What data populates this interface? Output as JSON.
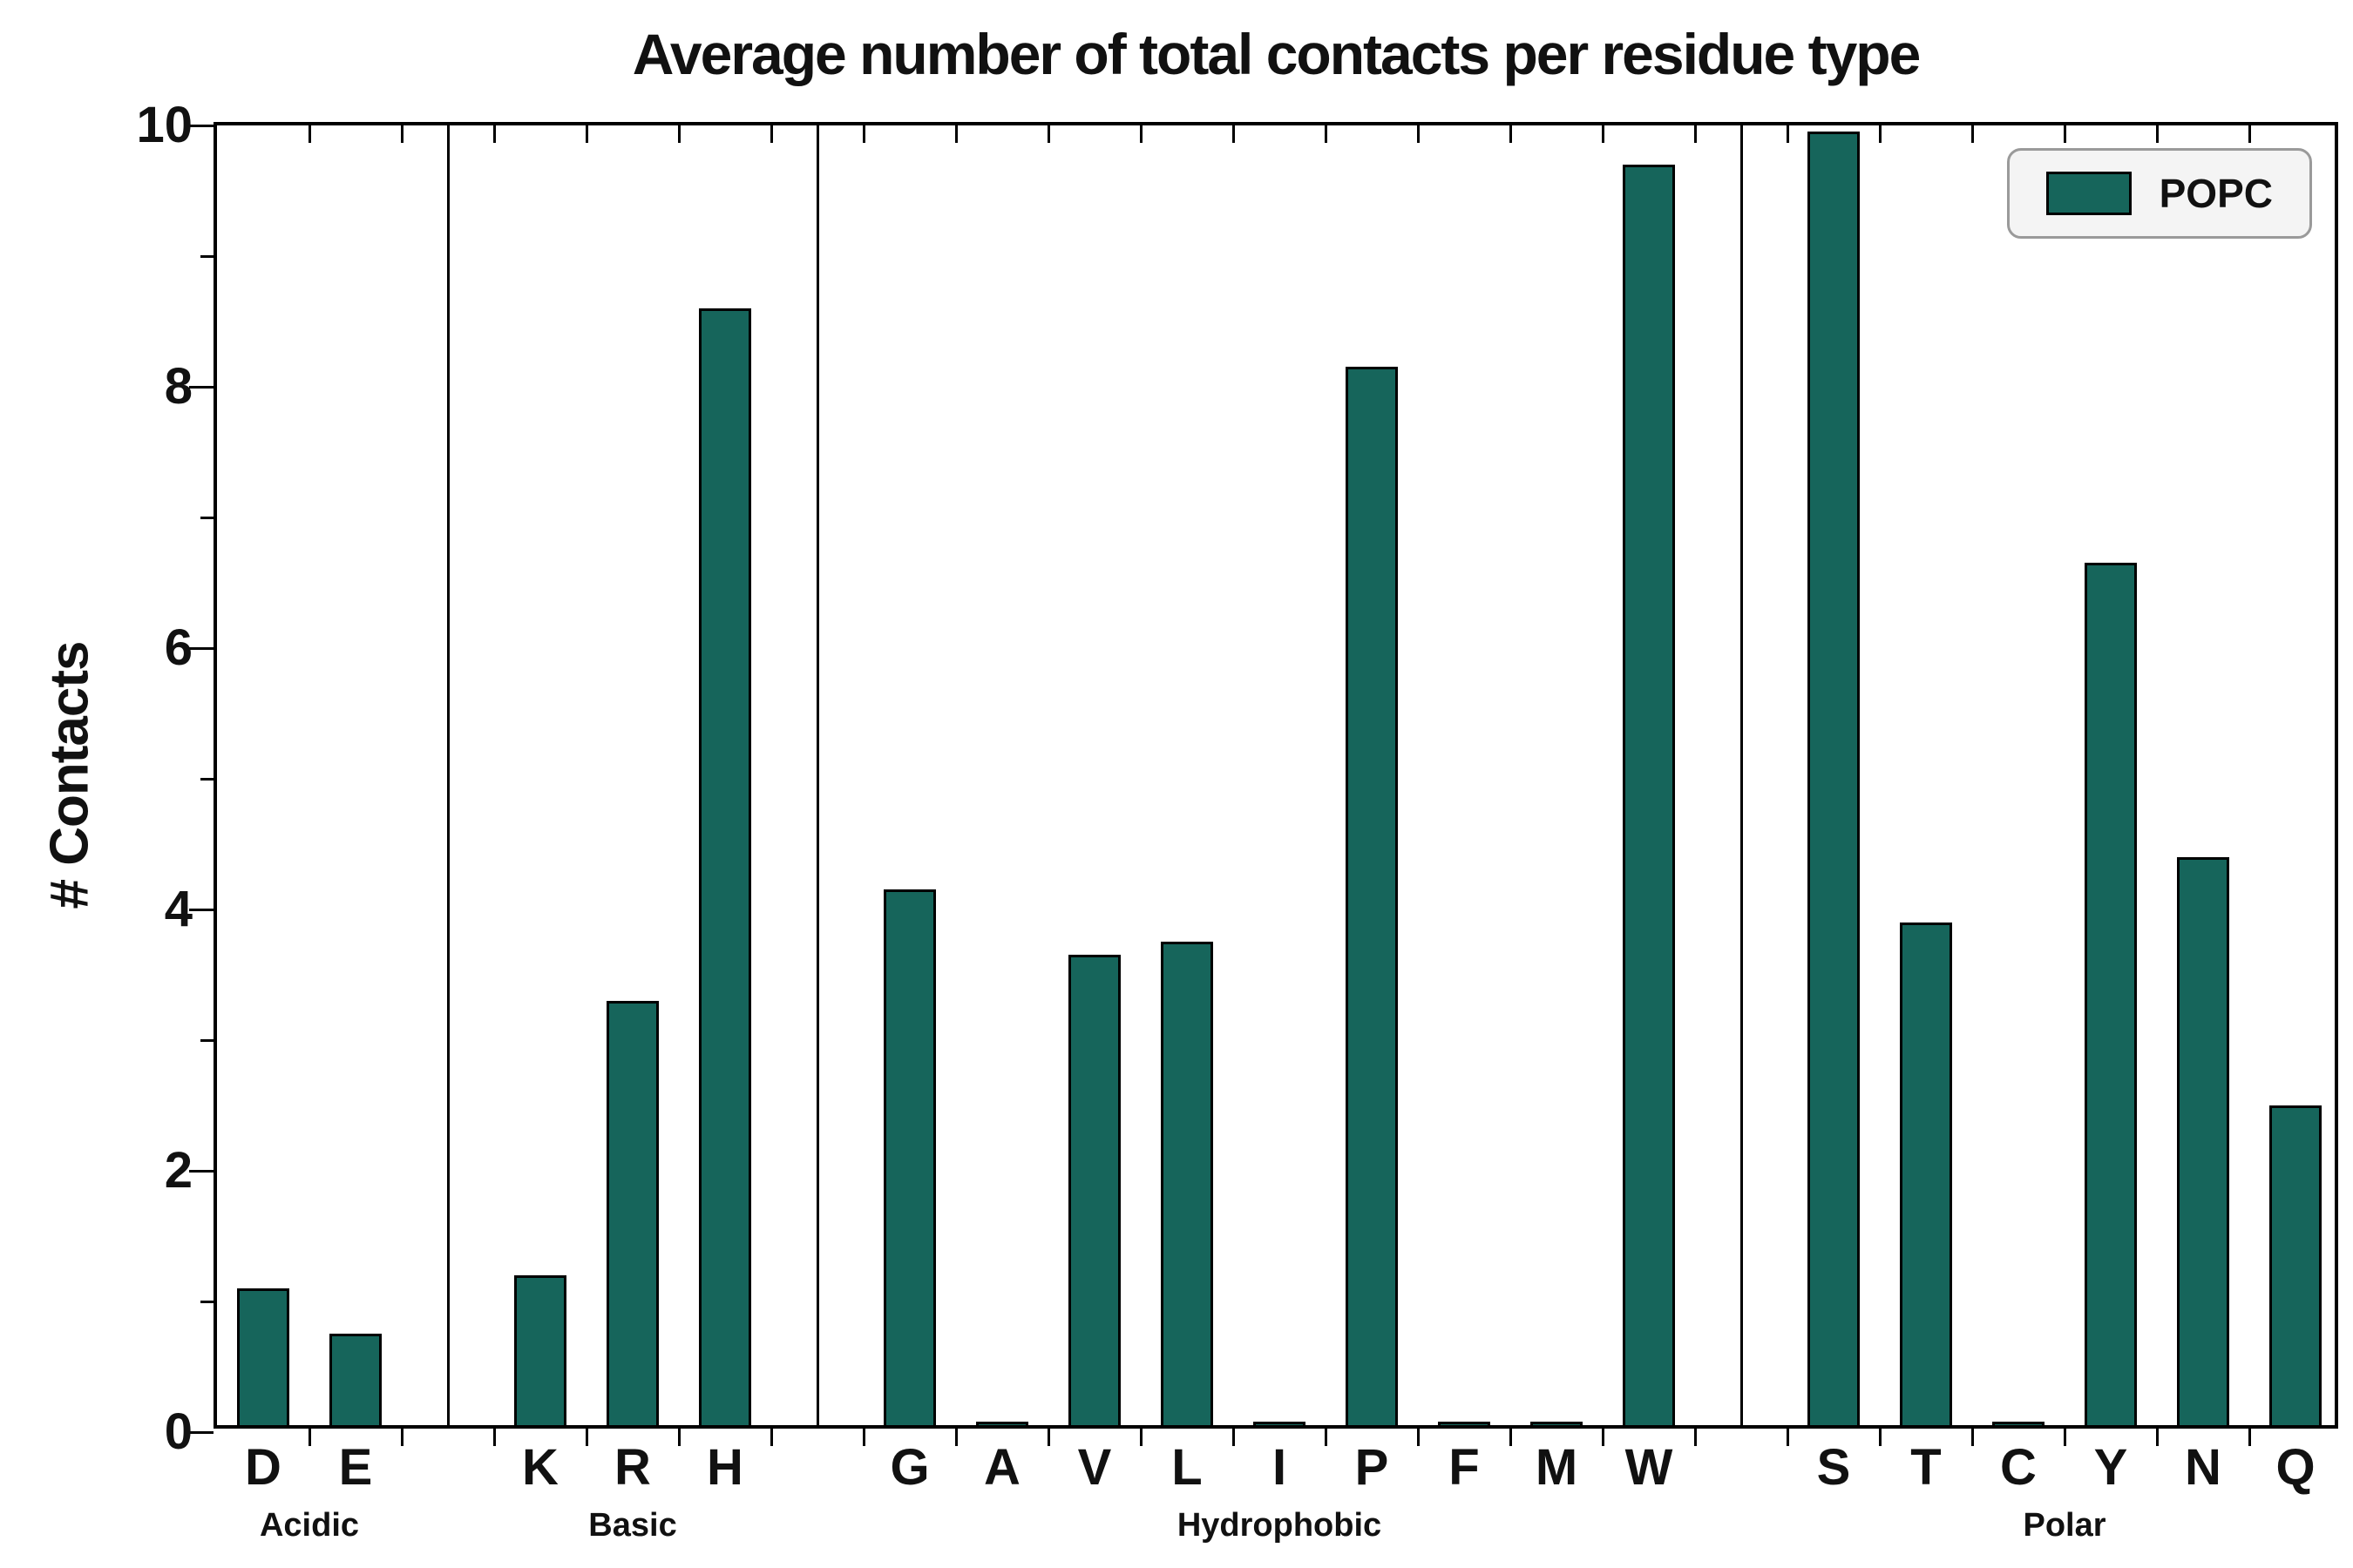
{
  "chart_data": {
    "type": "bar",
    "title": "Average number of total contacts per residue type",
    "xlabel": "",
    "ylabel": "# Contacts",
    "ylim": [
      0,
      10
    ],
    "yticks": [
      0,
      2,
      4,
      6,
      8,
      10
    ],
    "grid": false,
    "legend": {
      "label": "POPC",
      "position": "upper right"
    },
    "bar_color": "#16655b",
    "groups": [
      {
        "label": "Acidic",
        "categories": [
          "D",
          "E"
        ],
        "values": [
          1.05,
          0.7
        ]
      },
      {
        "label": "Basic",
        "categories": [
          "K",
          "R",
          "H"
        ],
        "values": [
          1.15,
          3.25,
          8.55
        ]
      },
      {
        "label": "Hydrophobic",
        "categories": [
          "G",
          "A",
          "V",
          "L",
          "I",
          "P",
          "F",
          "M",
          "W"
        ],
        "values": [
          4.1,
          0.03,
          3.6,
          3.7,
          0.03,
          8.1,
          0.03,
          0.03,
          9.65
        ]
      },
      {
        "label": "Polar",
        "categories": [
          "S",
          "T",
          "C",
          "Y",
          "N",
          "Q"
        ],
        "values": [
          9.9,
          3.85,
          0.03,
          6.6,
          4.35,
          2.45
        ]
      }
    ],
    "categories": [
      "D",
      "E",
      "K",
      "R",
      "H",
      "G",
      "A",
      "V",
      "L",
      "I",
      "P",
      "F",
      "M",
      "W",
      "S",
      "T",
      "C",
      "Y",
      "N",
      "Q"
    ],
    "values": [
      1.05,
      0.7,
      1.15,
      3.25,
      8.55,
      4.1,
      0.03,
      3.6,
      3.7,
      0.03,
      8.1,
      0.03,
      0.03,
      9.65,
      9.9,
      3.85,
      0.03,
      6.6,
      4.35,
      2.45
    ]
  }
}
